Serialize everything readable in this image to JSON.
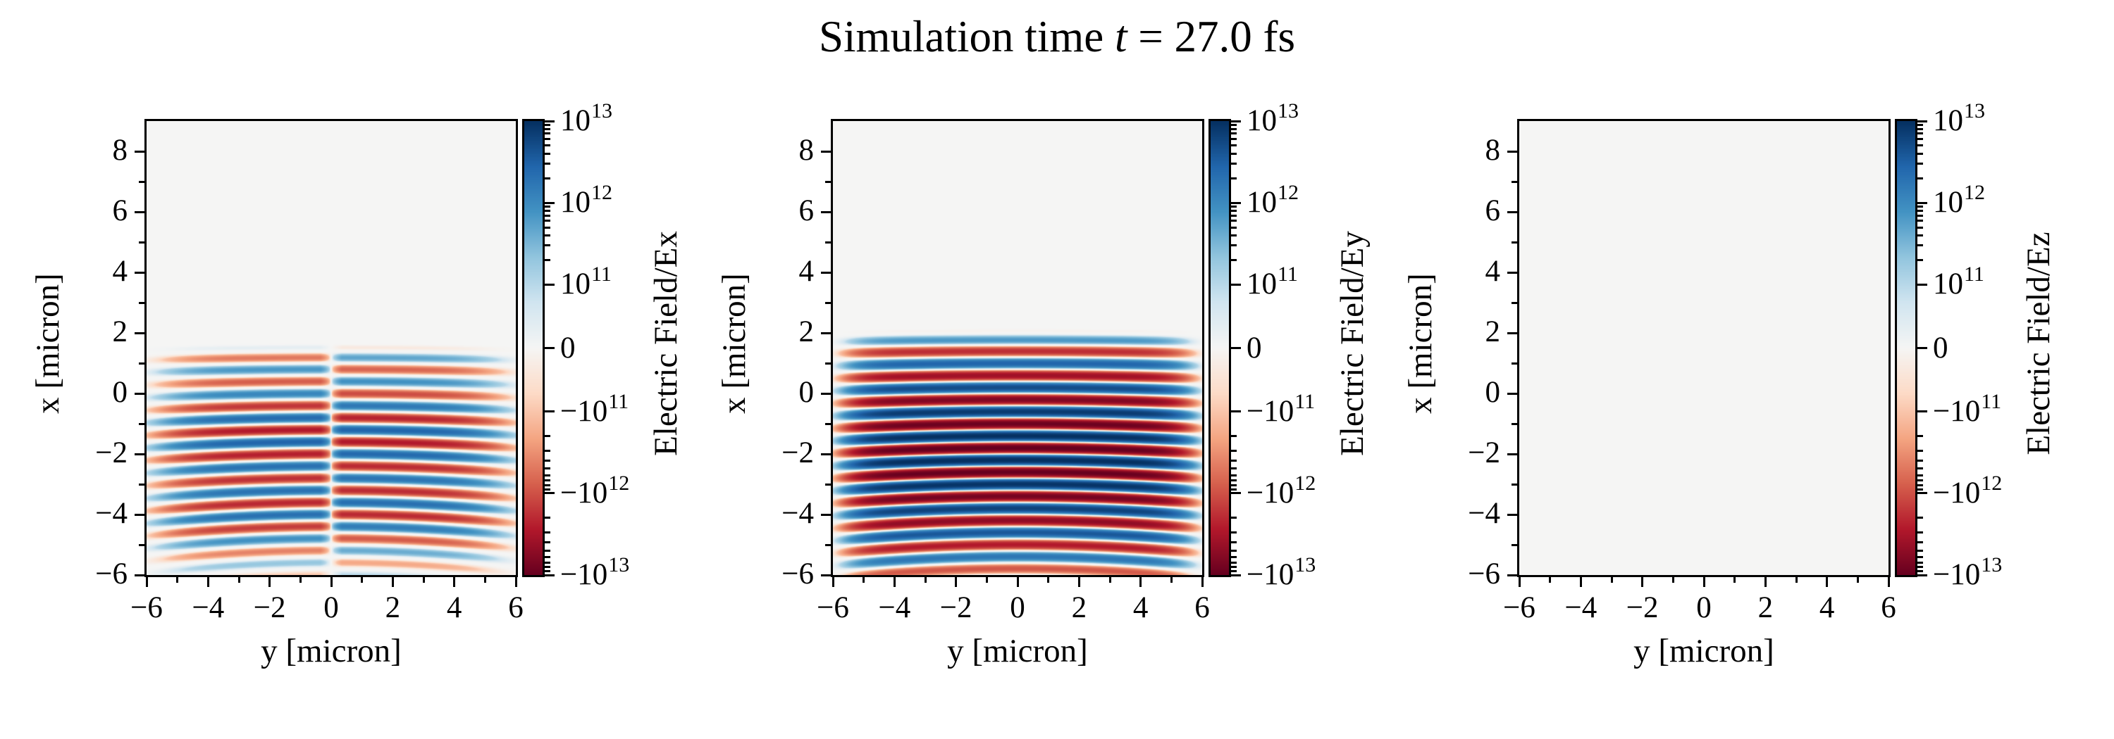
{
  "figure": {
    "title": {
      "pre": "Simulation time ",
      "var": "t",
      "post": " = 27.0 fs"
    },
    "simulation_time_fs": 27.0,
    "background": "#ffffff"
  },
  "axes": {
    "xlabel": "y [micron]",
    "ylabel": "x [micron]",
    "xlim": [
      -6,
      6
    ],
    "ylim": [
      -6,
      9
    ],
    "x_major_ticks": [
      -6,
      -4,
      -2,
      0,
      2,
      4,
      6
    ],
    "x_major_labels": [
      "−6",
      "−4",
      "−2",
      "0",
      "2",
      "4",
      "6"
    ],
    "x_minor_ticks": [
      -5,
      -3,
      -1,
      1,
      3,
      5
    ],
    "y_major_ticks": [
      8,
      6,
      4,
      2,
      0,
      -2,
      -4,
      -6
    ],
    "y_major_labels": [
      "8",
      "6",
      "4",
      "2",
      "0",
      "−2",
      "−4",
      "−6"
    ],
    "y_minor_ticks": [
      7,
      5,
      3,
      1,
      -1,
      -3,
      -5
    ],
    "colorbar": {
      "scale": "symlog",
      "linthresh": 100000000000.0,
      "vmin": -10000000000000.0,
      "vmax": 10000000000000.0,
      "major_ticks": [
        {
          "value": 10000000000000.0,
          "mant": "10",
          "exp": "13"
        },
        {
          "value": 1000000000000.0,
          "mant": "10",
          "exp": "12"
        },
        {
          "value": 100000000000.0,
          "mant": "10",
          "exp": "11"
        },
        {
          "value": 0,
          "mant": "0",
          "exp": ""
        },
        {
          "value": -100000000000.0,
          "mant": "−10",
          "exp": "11"
        },
        {
          "value": -1000000000000.0,
          "mant": "−10",
          "exp": "12"
        },
        {
          "value": -10000000000000.0,
          "mant": "−10",
          "exp": "13"
        }
      ],
      "minor_tick_decades": [
        100000000000.0,
        1000000000000.0
      ],
      "minor_tick_mantissas": [
        2,
        3,
        4,
        5,
        6,
        7,
        8,
        9
      ]
    }
  },
  "colormap": {
    "name": "RdBu",
    "stops": [
      "#67001f",
      "#b2182b",
      "#d6604d",
      "#f4a582",
      "#fddbc7",
      "#f5f5f4",
      "#d1e5f0",
      "#92c5de",
      "#4393c3",
      "#2166ac",
      "#053061"
    ],
    "negative_color_meaning": "red = negative field",
    "positive_color_meaning": "blue = positive field"
  },
  "chart_data": [
    {
      "type": "heatmap",
      "component": "Ex",
      "colorbar_label": "Electric Field/Ex",
      "xlabel": "y [micron]",
      "ylabel": "x [micron]",
      "xlim": [
        -6,
        6
      ],
      "ylim": [
        -6,
        9
      ],
      "summary": "Transverse-gradient field of a laser pulse: moderate-amplitude (~3e12) horizontal stripe pattern of wavelength 0.8 micron filling x from about 1.5 down to -6, antisymmetric about y=0 (white vertical seam), fading toward |y|=6 and toward the bottom edge.",
      "field_model": {
        "amplitude": 3200000000000.0,
        "wavelength": 0.8,
        "phase_x0": 1.8,
        "carrier_gamma": 2.5,
        "center_x": -2.2,
        "sigma_x": 2.8,
        "cut_x": 1.0,
        "cut_ramp": 0.65,
        "odd_y": true,
        "seam_halfwidth": 0.35,
        "y_width": 5.0,
        "y_pow": 6,
        "curv_base": 0.002,
        "curv_grow": 0.0011,
        "front_edge": 1.5,
        "fade_start": -4.0,
        "fade_rate": 0.35,
        "fade_floor": 0.18,
        "mod_depth": 0.2,
        "mod_period": 3.0,
        "mod_phase": -1.2
      }
    },
    {
      "type": "heatmap",
      "component": "Ey",
      "colorbar_label": "Electric Field/Ey",
      "xlabel": "y [micron]",
      "ylabel": "x [micron]",
      "xlim": [
        -6,
        6
      ],
      "ylim": [
        -6,
        9
      ],
      "summary": "Main laser pulse polarization: saturated (~1e13) alternating red/blue horizontal stripes of wavelength 0.8 micron spanning the full width from x of about 2 down to -6, slightly bowed wavefronts, amplitude fading only near |y|=6 and softly near the bottom.",
      "field_model": {
        "amplitude": 10500000000000.0,
        "wavelength": 0.8,
        "phase_x0": 1.6,
        "carrier_gamma": 2.2,
        "center_x": -2.0,
        "sigma_x": 2.6,
        "cut_x": 1.45,
        "cut_ramp": 0.7,
        "odd_y": false,
        "seam_halfwidth": 0,
        "y_width": 5.2,
        "y_pow": 10,
        "curv_base": 0.0015,
        "curv_grow": 0.0009,
        "front_edge": 2.0,
        "fade_start": -5.2,
        "fade_rate": 0.45,
        "fade_floor": 0.5,
        "mod_depth": 0
      }
    },
    {
      "type": "heatmap",
      "component": "Ez",
      "colorbar_label": "Electric Field/Ez",
      "xlabel": "y [micron]",
      "ylabel": "x [micron]",
      "xlim": [
        -6,
        6
      ],
      "ylim": [
        -6,
        9
      ],
      "summary": "Out-of-plane component is zero everywhere: uniform near-white panel.",
      "field_model": {
        "amplitude": 0
      }
    }
  ]
}
